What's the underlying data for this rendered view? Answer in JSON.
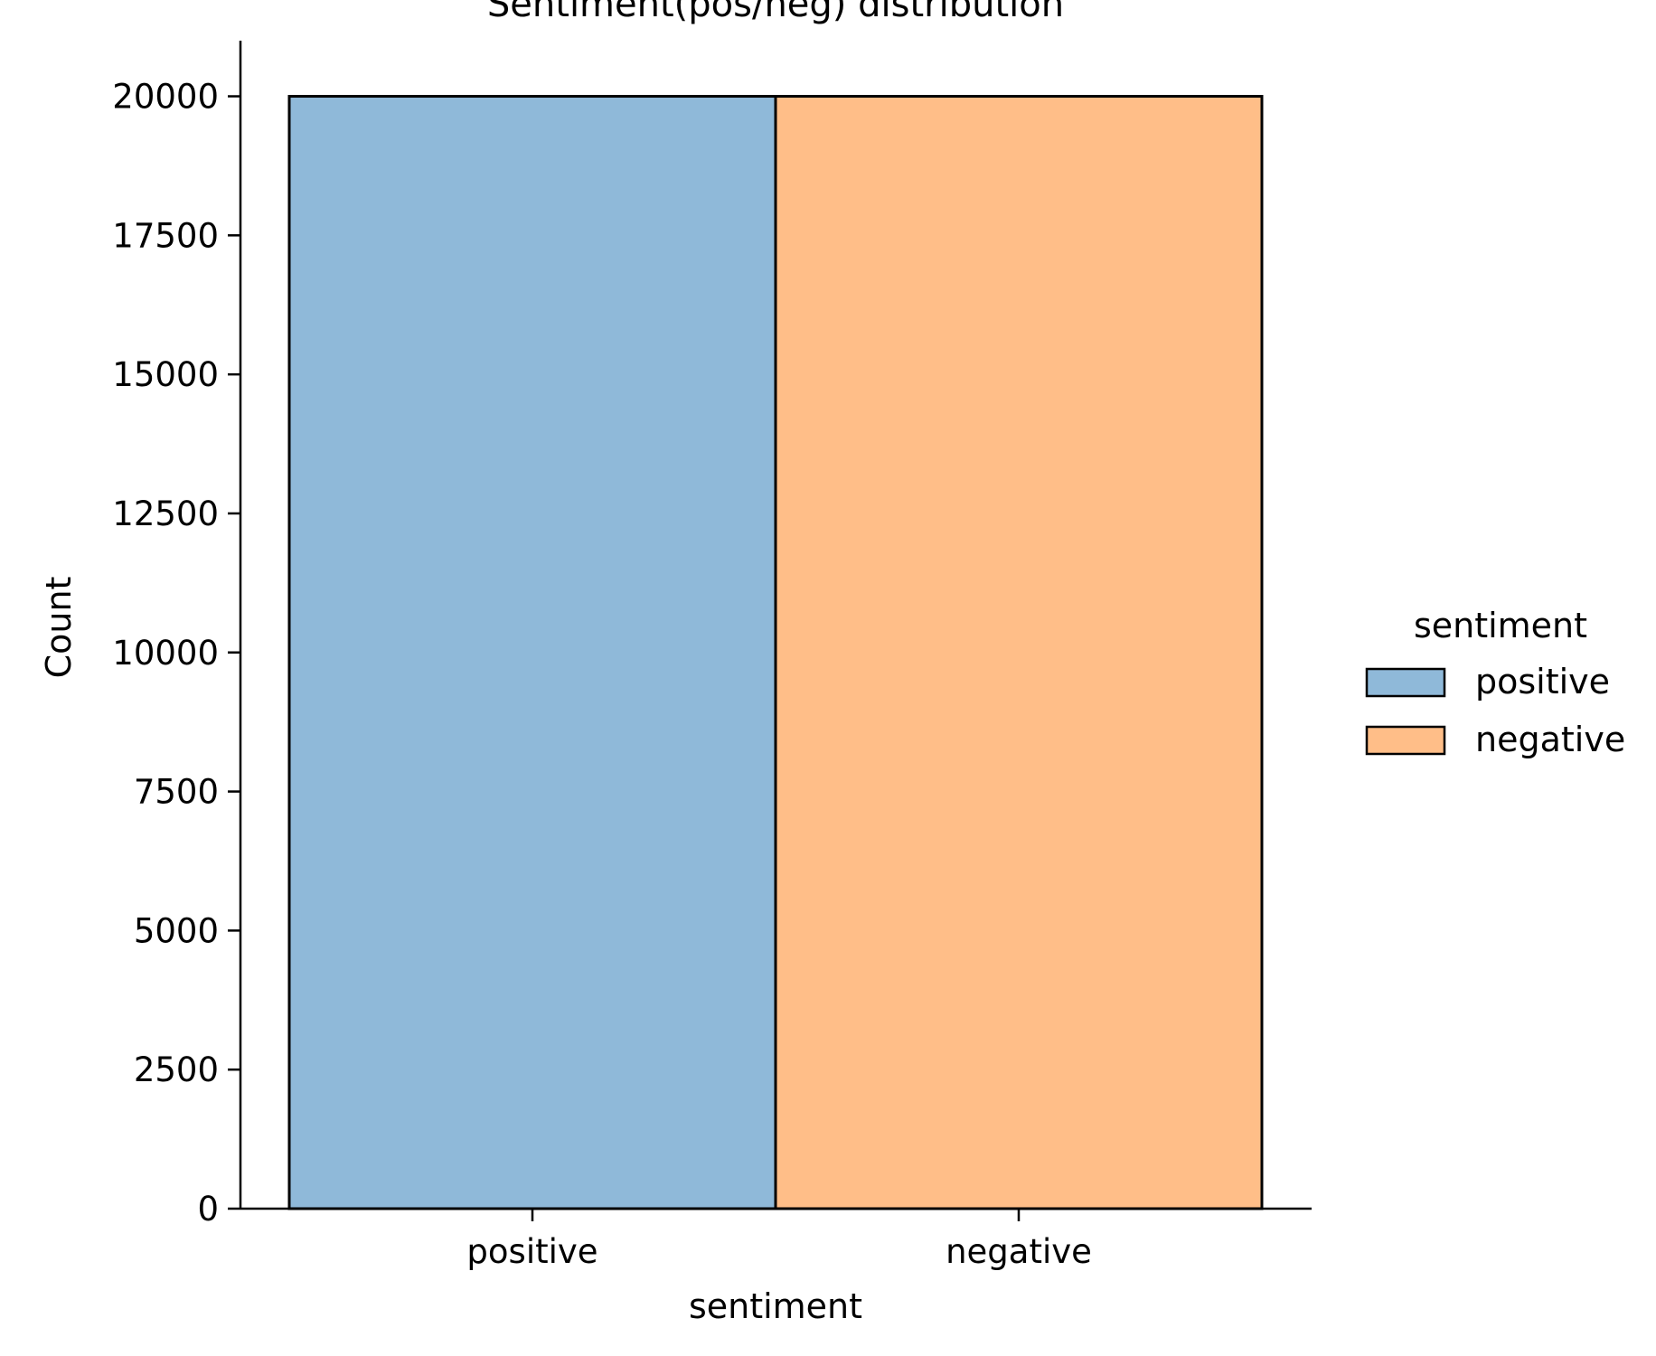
{
  "chart_data": {
    "type": "bar",
    "title": "Sentiment(pos/neg) distribution",
    "xlabel": "sentiment",
    "ylabel": "Count",
    "categories": [
      "positive",
      "negative"
    ],
    "values": [
      20000,
      20000
    ],
    "ylim": [
      0,
      21000
    ],
    "yticks": [
      0,
      2500,
      5000,
      7500,
      10000,
      12500,
      15000,
      17500,
      20000
    ],
    "colors": [
      "#8fb9d9",
      "#ffbe88"
    ],
    "edge_color": "#000000",
    "grid": false,
    "legend": {
      "title": "sentiment",
      "placement": "right",
      "entries": [
        "positive",
        "negative"
      ]
    }
  }
}
